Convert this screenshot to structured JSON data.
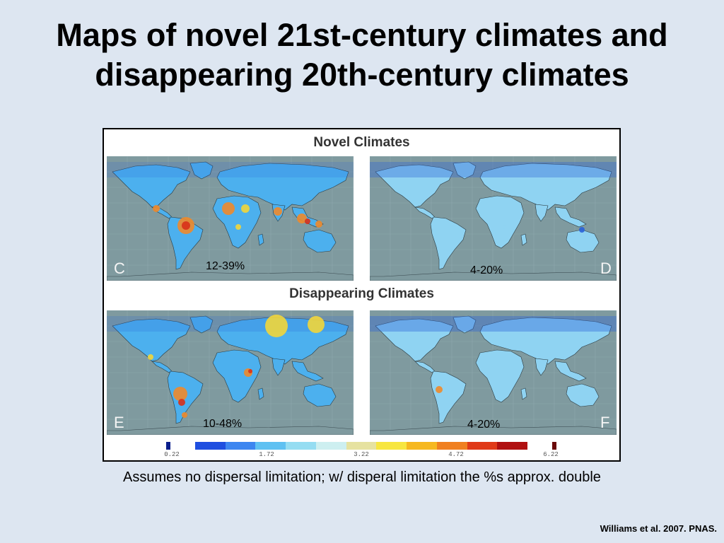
{
  "slide": {
    "title_line1": "Maps of novel 21st-century climates and",
    "title_line2": "disappearing 20th-century climates",
    "caption": "Assumes no dispersal limitation; w/ disperal limitation the %s approx. double",
    "citation": "Williams et al. 2007. PNAS."
  },
  "figure": {
    "heading_novel": "Novel Climates",
    "heading_disappearing": "Disappearing Climates",
    "panels": [
      {
        "letter": "C",
        "range_label": "12-39%"
      },
      {
        "letter": "D",
        "range_label": "4-20%"
      },
      {
        "letter": "E",
        "range_label": "10-48%"
      },
      {
        "letter": "F",
        "range_label": "4-20%"
      }
    ],
    "colorbar": {
      "ticks": [
        "0.22",
        "1.72",
        "3.22",
        "4.72",
        "6.22"
      ],
      "colors": [
        "#0a1e8c",
        "#1f4fe0",
        "#3d86f0",
        "#5fc1f2",
        "#95ddf2",
        "#cdeff0",
        "#e6e2a0",
        "#f7e640",
        "#f6b820",
        "#f08020",
        "#e03a18",
        "#b01010",
        "#6a0808"
      ]
    },
    "map_colors": {
      "ocean": "#7f9a9f",
      "land_cool": "#4cb0ee",
      "land_light": "#8fd3f2",
      "land_deep": "#2a62d8",
      "hot_yellow": "#f2d63a",
      "hot_orange": "#f08a2a",
      "hot_red": "#d8301a"
    }
  }
}
